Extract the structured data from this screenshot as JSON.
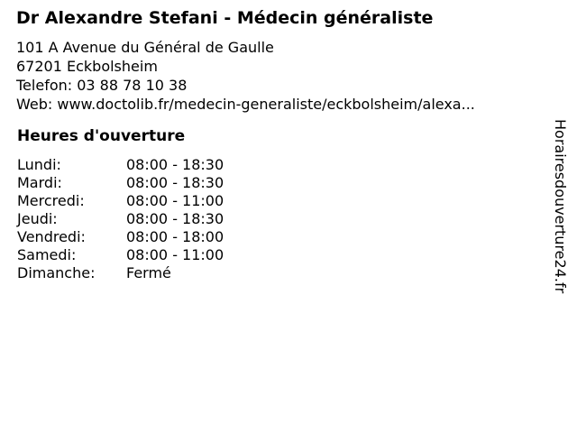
{
  "page": {
    "background_color": "#ffffff",
    "text_color": "#000000"
  },
  "business": {
    "title": "Dr Alexandre Stefani - Médecin généraliste",
    "address_line1": "101 A Avenue du Général de Gaulle",
    "address_line2": "67201 Eckbolsheim",
    "phone": {
      "label": "Telefon:",
      "value": "03 88 78 10 38"
    },
    "website": {
      "label": "Web:",
      "value": "www.doctolib.fr/medecin-generaliste/eckbolsheim/alexa..."
    }
  },
  "opening_hours": {
    "heading": "Heures d'ouverture",
    "rows": [
      {
        "day": "Lundi:",
        "time": "08:00 - 18:30"
      },
      {
        "day": "Mardi:",
        "time": "08:00 - 18:30"
      },
      {
        "day": "Mercredi:",
        "time": "08:00 - 11:00"
      },
      {
        "day": "Jeudi:",
        "time": "08:00 - 18:30"
      },
      {
        "day": "Vendredi:",
        "time": "08:00 - 18:00"
      },
      {
        "day": "Samedi:",
        "time": "08:00 - 11:00"
      },
      {
        "day": "Dimanche:",
        "time": "Fermé"
      }
    ]
  },
  "watermark": {
    "text": "Horairesdouverture24.fr"
  }
}
